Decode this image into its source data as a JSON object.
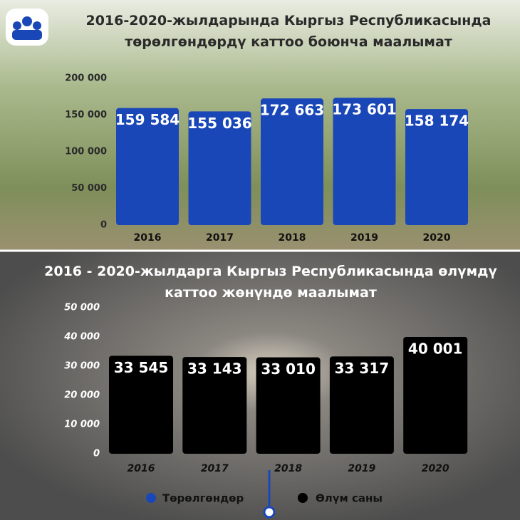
{
  "chart_data": [
    {
      "type": "bar",
      "title": "2016-2020-жылдарында Кыргыз Республикасында төрөлгөндөрдү каттоо боюнча маалымат",
      "categories": [
        "2016",
        "2017",
        "2018",
        "2019",
        "2020"
      ],
      "series": [
        {
          "name": "Төрөлгөндөр",
          "color": "#1a47b8",
          "values": [
            159584,
            155036,
            172663,
            173601,
            158174
          ],
          "value_labels": [
            "159 584",
            "155 036",
            "172 663",
            "173 601",
            "158 174"
          ]
        }
      ],
      "ylim": [
        0,
        200000
      ],
      "yticks": [
        0,
        {
          "value": 50000,
          "label": "50 000"
        },
        {
          "value": 100000,
          "label": "100 000"
        },
        {
          "value": 150000,
          "label": "150 000"
        },
        {
          "value": 200000,
          "label": "200 000"
        }
      ]
    },
    {
      "type": "bar",
      "title": "2016 - 2020-жылдарга Кыргыз Республикасында өлүмдү каттоо жөнүндө маалымат",
      "categories": [
        "2016",
        "2017",
        "2018",
        "2019",
        "2020"
      ],
      "series": [
        {
          "name": "Өлүм саны",
          "color": "#000000",
          "values": [
            33545,
            33143,
            33010,
            33317,
            40001
          ],
          "value_labels": [
            "33 545",
            "33 143",
            "33 010",
            "33 317",
            "40 001"
          ]
        }
      ],
      "ylim": [
        0,
        50000
      ],
      "yticks": [
        0,
        {
          "value": 10000,
          "label": "10 000"
        },
        {
          "value": 20000,
          "label": "20 000"
        },
        {
          "value": 30000,
          "label": "30 000"
        },
        {
          "value": 40000,
          "label": "40 000"
        },
        {
          "value": 50000,
          "label": "50 000"
        }
      ]
    }
  ]
}
